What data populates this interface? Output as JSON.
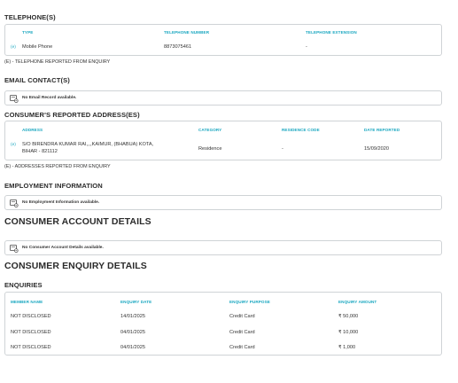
{
  "telephones": {
    "title": "TELEPHONE(S)",
    "headers": [
      "TYPE",
      "TELEPHONE NUMBER",
      "TELEPHONE EXTENSION"
    ],
    "rows": [
      {
        "marker": "(e)",
        "type": "Mobile Phone",
        "number": "8873075461",
        "extension": "-"
      }
    ],
    "footnote": "(e) - TELEPHONE REPORTED FROM ENQUIRY"
  },
  "emails": {
    "title": "EMAIL CONTACT(S)",
    "empty": "No Email Record available."
  },
  "addresses": {
    "title": "CONSUMER'S REPORTED ADDRESS(ES)",
    "headers": [
      "ADDRESS",
      "CATEGORY",
      "RESIDENCE CODE",
      "DATE REPORTED"
    ],
    "rows": [
      {
        "marker": "(e)",
        "address_line1": "S/O BIRENDRA KUMAR RAI,,,,KAIMUR, (BHABUA) KOTA,",
        "address_line2": "BIHAR - 821112",
        "category": "Residence",
        "residence_code": "-",
        "date": "15/09/2020"
      }
    ],
    "footnote": "(e) - ADDRESSES REPORTED FROM ENQUIRY"
  },
  "employment": {
    "title": "EMPLOYMENT INFORMATION",
    "empty": "No Employment Information available."
  },
  "accounts": {
    "title": "CONSUMER ACCOUNT DETAILS",
    "empty": "No Consumer Account Details available."
  },
  "enquiry_details": {
    "title": "CONSUMER ENQUIRY DETAILS"
  },
  "enquiries": {
    "title": "ENQUIRIES",
    "headers": [
      "MEMBER NAME",
      "ENQUIRY DATE",
      "ENQUIRY PURPOSE",
      "ENQUIRY AMOUNT"
    ],
    "rows": [
      {
        "member": "NOT DISCLOSED",
        "date": "14/01/2025",
        "purpose": "Credit Card",
        "amount": "₹ 50,000"
      },
      {
        "member": "NOT DISCLOSED",
        "date": "04/01/2025",
        "purpose": "Credit Card",
        "amount": "₹ 10,000"
      },
      {
        "member": "NOT DISCLOSED",
        "date": "04/01/2025",
        "purpose": "Credit Card",
        "amount": "₹ 1,000"
      }
    ]
  },
  "colors": {
    "accent": "#1aa7c0",
    "border": "#cfd3d6",
    "text": "#2b2b2b"
  },
  "icons": {
    "empty_state": "no-record-icon"
  }
}
